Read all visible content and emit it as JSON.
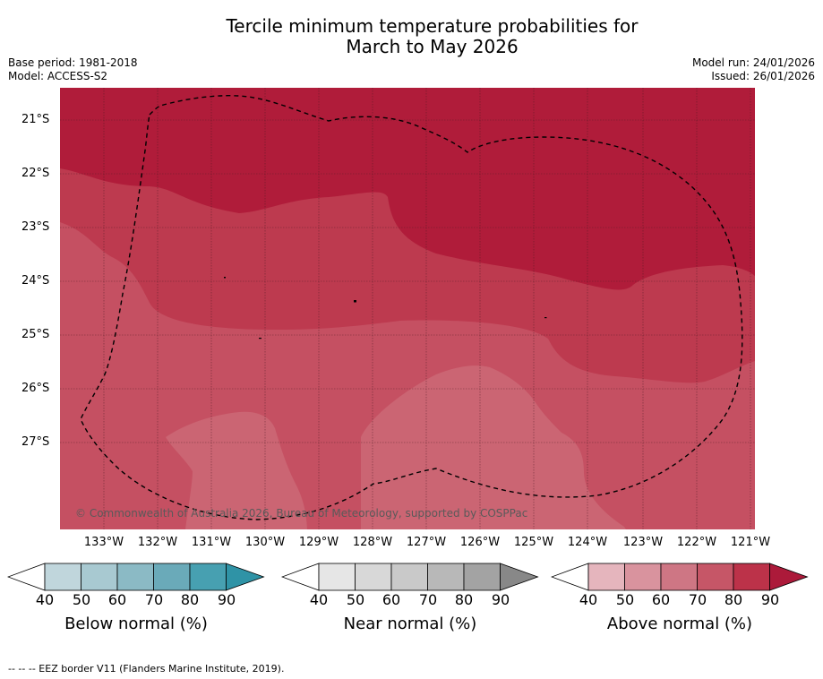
{
  "title": {
    "line1": "Tercile minimum temperature probabilities for",
    "line2": "March to May 2026"
  },
  "meta": {
    "base_period": "Base period: 1981-2018",
    "model": "Model: ACCESS-S2",
    "model_run": "Model run: 24/01/2026",
    "issued": "Issued: 26/01/2026"
  },
  "map": {
    "latitude_labels": [
      "21°S",
      "22°S",
      "23°S",
      "24°S",
      "25°S",
      "26°S",
      "27°S"
    ],
    "longitude_labels": [
      "133°W",
      "132°W",
      "131°W",
      "130°W",
      "129°W",
      "128°W",
      "127°W",
      "126°W",
      "125°W",
      "124°W",
      "123°W",
      "122°W",
      "121°W"
    ],
    "copyright": "© Commonwealth of Australia 2026, Bureau of Meteorology, supported by COSPPac",
    "colors": {
      "above_90": "#b01c3a",
      "above_80": "#bd3a4f",
      "above_70": "#c55062",
      "above_60": "#cb6573",
      "grid": "#4a1a22"
    }
  },
  "colorbars": {
    "ticks": [
      "40",
      "50",
      "60",
      "70",
      "80",
      "90"
    ],
    "below": {
      "label": "Below normal (%)",
      "colors": [
        "#c0d6dc",
        "#a8c9d1",
        "#8bbac5",
        "#6aaab9",
        "#47a0b1",
        "#2f93a6"
      ]
    },
    "near": {
      "label": "Near normal (%)",
      "colors": [
        "#e6e6e6",
        "#d8d8d8",
        "#c9c9c9",
        "#b8b8b8",
        "#a3a3a3",
        "#888888"
      ]
    },
    "above": {
      "label": "Above normal (%)",
      "colors": [
        "#e5b5bd",
        "#d9939e",
        "#ce7684",
        "#c65667",
        "#bc3249",
        "#ac1a3a"
      ]
    }
  },
  "footnote": "--  --  -- EEZ border V11 (Flanders Marine Institute, 2019)."
}
